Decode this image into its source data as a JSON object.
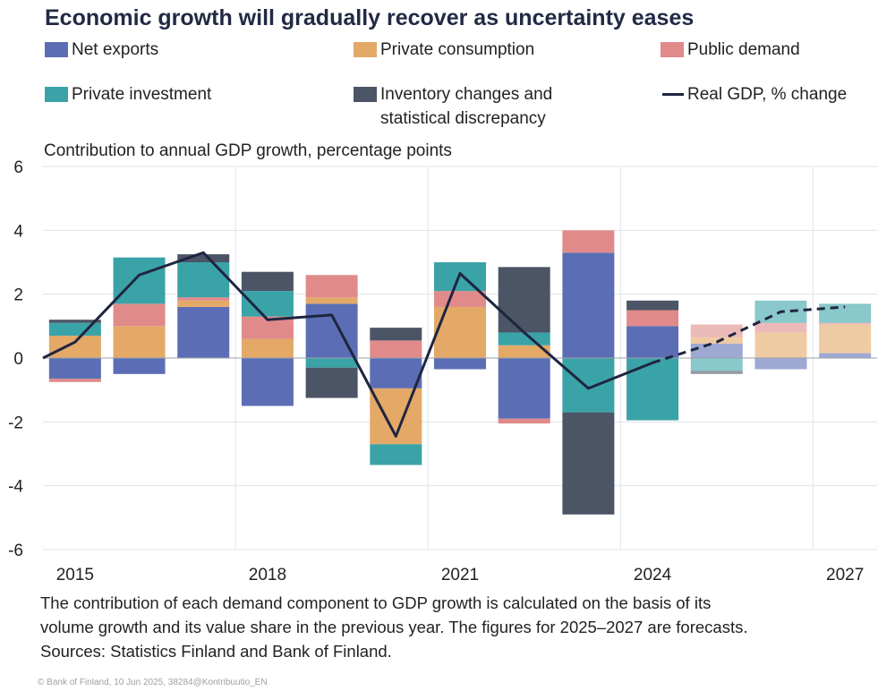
{
  "title": "Economic growth will gradually recover as uncertainty eases",
  "subtitle": "Contribution to annual GDP growth, percentage points",
  "footnote_lines": [
    "The contribution of each demand component to GDP growth is calculated on the basis of its",
    "volume growth and its value share in the previous year. The figures for 2025–2027 are forecasts.",
    "Sources: Statistics  Finland and Bank of Finland."
  ],
  "credit": "© Bank of Finland, 10 Jun 2025, 38284@Kontribuutio_EN",
  "legend": [
    {
      "label": "Net exports",
      "color": "#5b6eb5",
      "kind": "bar"
    },
    {
      "label": "Private consumption",
      "color": "#e4a867",
      "kind": "bar"
    },
    {
      "label": "Public demand",
      "color": "#e08a8a",
      "kind": "bar"
    },
    {
      "label": "Private investment",
      "color": "#3aa3a8",
      "kind": "bar"
    },
    {
      "label_line1": "Inventory changes and",
      "label_line2": "statistical discrepancy",
      "color": "#4b5566",
      "kind": "bar"
    },
    {
      "label": "Real GDP, % change",
      "color": "#1f2540",
      "kind": "line"
    }
  ],
  "chart_data": {
    "type": "bar",
    "stacked": true,
    "categories": [
      "2015",
      "2016",
      "2017",
      "2018",
      "2019",
      "2020",
      "2021",
      "2022",
      "2023",
      "2024",
      "2025",
      "2026",
      "2027"
    ],
    "x_tick_labels": [
      "2015",
      "2018",
      "2021",
      "2024",
      "2027"
    ],
    "ylim": [
      -6,
      6
    ],
    "y_ticks": [
      "6",
      "4",
      "2",
      "0",
      "-2",
      "-4",
      "-6"
    ],
    "forecast_from": "2025",
    "grid": true,
    "series": [
      {
        "name": "Net exports",
        "color": "#5b6eb5",
        "values": [
          -0.65,
          -0.5,
          1.6,
          -1.5,
          1.7,
          -0.95,
          -0.35,
          -1.9,
          3.3,
          1.0,
          0.45,
          -0.35,
          0.15
        ]
      },
      {
        "name": "Private consumption",
        "color": "#e4a867",
        "values": [
          0.7,
          1.0,
          0.2,
          0.6,
          0.2,
          -1.75,
          1.6,
          0.4,
          0.0,
          0.0,
          0.2,
          0.8,
          0.9
        ]
      },
      {
        "name": "Public demand",
        "color": "#e08a8a",
        "values": [
          -0.1,
          0.7,
          0.1,
          0.7,
          0.7,
          0.55,
          0.5,
          -0.15,
          0.7,
          0.5,
          0.4,
          0.3,
          0.05
        ]
      },
      {
        "name": "Private investment",
        "color": "#3aa3a8",
        "values": [
          0.4,
          1.45,
          1.1,
          0.8,
          -0.3,
          -0.65,
          0.9,
          0.4,
          -1.7,
          -1.95,
          -0.4,
          0.7,
          0.6
        ]
      },
      {
        "name": "Inventory changes and statistical discrepancy",
        "color": "#4b5566",
        "values": [
          0.1,
          0.0,
          0.25,
          0.6,
          -0.95,
          0.4,
          0.0,
          2.05,
          -3.2,
          0.3,
          -0.1,
          0.0,
          0.0
        ]
      }
    ],
    "line": {
      "name": "Real GDP, % change",
      "color": "#1f2540",
      "values": [
        0.5,
        2.6,
        3.3,
        1.2,
        1.35,
        -2.45,
        2.65,
        0.8,
        -0.95,
        -0.15,
        0.5,
        1.45,
        1.6
      ],
      "start_value": 0.0
    }
  }
}
